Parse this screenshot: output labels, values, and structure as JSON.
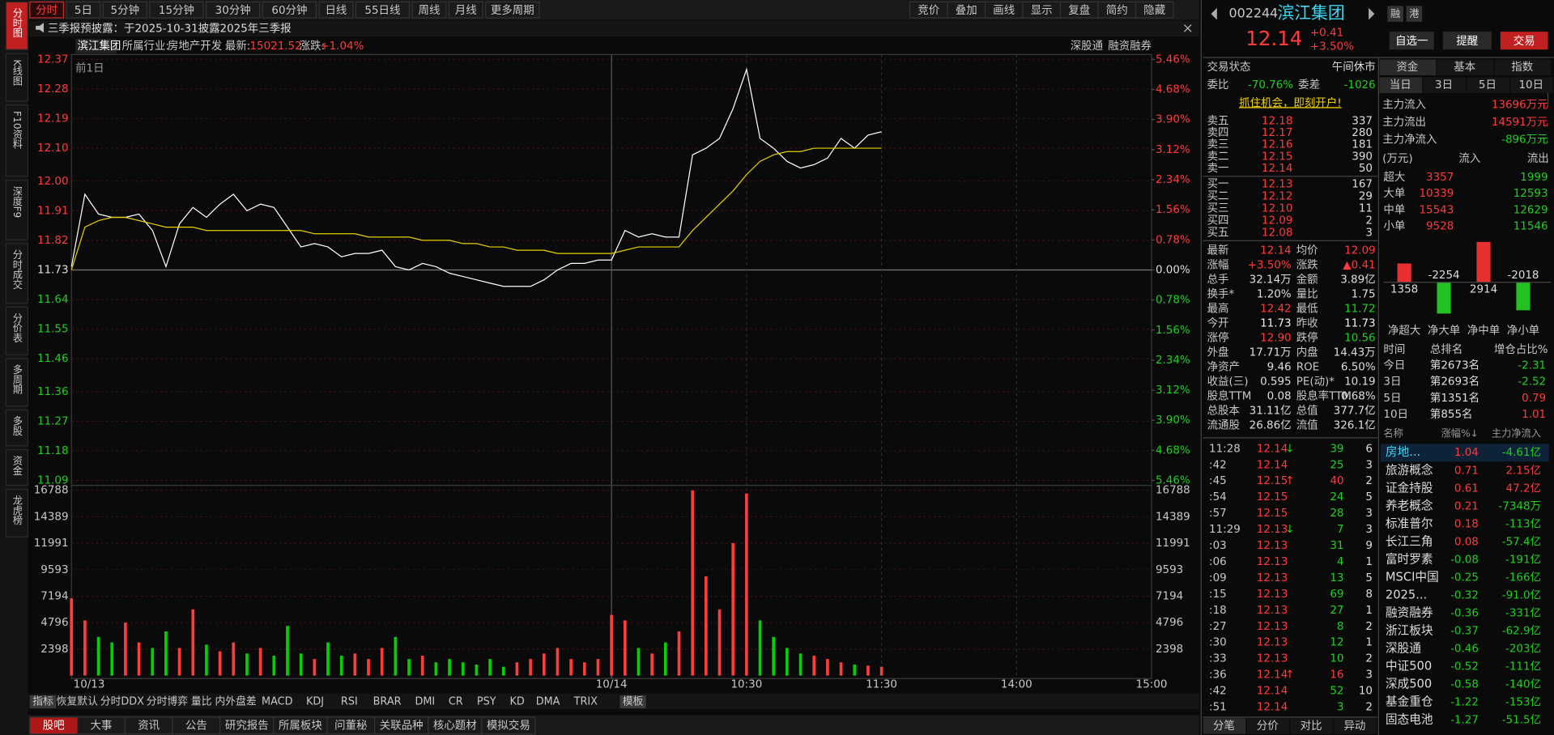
{
  "toolbar": {
    "periods": [
      "分时",
      "5日",
      "5分钟",
      "15分钟",
      "30分钟",
      "60分钟",
      "日线",
      "55日线",
      "周线",
      "月线",
      "更多周期"
    ],
    "tools": [
      "竞价",
      "叠加",
      "画线",
      "显示",
      "复盘",
      "简约",
      "隐藏"
    ]
  },
  "side_tabs": [
    "分时图",
    "K线图",
    "F10资料",
    "深度F9",
    "分时成交",
    "分价表",
    "多周期",
    "多股",
    "资金",
    "龙虎榜"
  ],
  "notice": "三季报预披露：于2025-10-31披露2025年三季报",
  "info": {
    "name": "滨江集团",
    "industry_label": "所属行业:",
    "industry": "房地产开发",
    "latest_label": "最新:",
    "latest": "15021.52",
    "change_label": "涨跌:",
    "change": "+1.04%",
    "links": [
      "深股通",
      "融资融券"
    ]
  },
  "chart_data": [
    {
      "type": "line",
      "annotation": "前1日",
      "x": [
        0,
        6,
        12,
        18,
        24,
        30,
        36,
        42,
        48,
        54,
        60,
        66,
        72,
        78,
        84,
        90,
        96,
        102,
        108,
        114,
        120,
        126,
        132,
        138,
        144,
        150,
        156,
        162,
        168,
        174,
        180,
        186,
        192,
        198,
        204,
        210,
        216,
        222,
        228,
        234,
        240,
        246,
        252,
        258,
        264,
        270,
        276,
        282,
        288,
        294,
        300,
        306,
        312,
        318,
        324,
        330,
        336,
        342,
        348,
        354,
        360
      ],
      "xlim": [
        0,
        480
      ],
      "ylim": [
        11.09,
        12.37
      ],
      "yticks": [
        12.37,
        12.28,
        12.19,
        {
          "value": 12.1,
          "label": "12.10"
        },
        {
          "value": 12,
          "label": "12.00"
        },
        11.91,
        11.82,
        11.73,
        11.64,
        11.55,
        11.46,
        11.36,
        11.27,
        11.18,
        11.09
      ],
      "y2lim": [
        -5.46,
        5.46
      ],
      "y2ticks": [
        {
          "value": 5.46,
          "label": "5.46%"
        },
        {
          "value": 4.68,
          "label": "4.68%"
        },
        {
          "value": 3.9,
          "label": "3.90%"
        },
        {
          "value": 3.12,
          "label": "3.12%"
        },
        {
          "value": 2.34,
          "label": "2.34%"
        },
        {
          "value": 1.56,
          "label": "1.56%"
        },
        {
          "value": 0.78,
          "label": "0.78%"
        },
        {
          "value": 0,
          "label": "0.00%"
        },
        {
          "value": -0.78,
          "label": "0.78%"
        },
        {
          "value": -1.56,
          "label": "1.56%"
        },
        {
          "value": -2.34,
          "label": "2.34%"
        },
        {
          "value": -3.12,
          "label": "3.12%"
        },
        {
          "value": -3.9,
          "label": "3.90%"
        },
        {
          "value": -4.68,
          "label": "4.68%"
        },
        {
          "value": -5.46,
          "label": "5.46%"
        }
      ],
      "grid": true,
      "series": [
        {
          "color": "#ffffff",
          "values": [
            11.74,
            11.96,
            11.9,
            11.89,
            11.89,
            11.9,
            11.85,
            11.74,
            11.87,
            11.92,
            11.89,
            11.93,
            11.96,
            11.91,
            11.93,
            11.92,
            11.86,
            11.8,
            11.81,
            11.8,
            11.77,
            11.78,
            11.78,
            11.79,
            11.74,
            11.73,
            11.75,
            11.74,
            11.72,
            11.71,
            11.7,
            11.69,
            11.68,
            11.68,
            11.68,
            11.7,
            11.73,
            11.75,
            11.75,
            11.76,
            11.76,
            11.85,
            11.83,
            11.84,
            11.83,
            11.83,
            12.08,
            12.1,
            12.13,
            12.22,
            12.34,
            12.13,
            12.1,
            12.06,
            12.04,
            12.05,
            12.07,
            12.13,
            12.1,
            12.14,
            12.15
          ]
        },
        {
          "color": "#e6d200",
          "values": [
            11.73,
            11.86,
            11.88,
            11.89,
            11.89,
            11.88,
            11.87,
            11.86,
            11.86,
            11.86,
            11.85,
            11.85,
            11.85,
            11.85,
            11.85,
            11.85,
            11.85,
            11.85,
            11.84,
            11.84,
            11.84,
            11.84,
            11.83,
            11.83,
            11.83,
            11.83,
            11.82,
            11.82,
            11.82,
            11.81,
            11.81,
            11.8,
            11.8,
            11.79,
            11.79,
            11.79,
            11.78,
            11.78,
            11.78,
            11.78,
            11.78,
            11.79,
            11.8,
            11.8,
            11.8,
            11.8,
            11.85,
            11.89,
            11.93,
            11.97,
            12.02,
            12.06,
            12.08,
            12.09,
            12.09,
            12.1,
            12.1,
            12.1,
            12.1,
            12.1,
            12.1
          ]
        }
      ]
    },
    {
      "type": "bar",
      "x": [
        0,
        6,
        12,
        18,
        24,
        30,
        36,
        42,
        48,
        54,
        60,
        66,
        72,
        78,
        84,
        90,
        96,
        102,
        108,
        114,
        120,
        126,
        132,
        138,
        144,
        150,
        156,
        162,
        168,
        174,
        180,
        186,
        192,
        198,
        204,
        210,
        216,
        222,
        228,
        234,
        240,
        246,
        252,
        258,
        264,
        270,
        276,
        282,
        288,
        294,
        300,
        306,
        312,
        318,
        324,
        330,
        336,
        342,
        348,
        354,
        360
      ],
      "xlim": [
        0,
        480
      ],
      "xticks": [
        {
          "value": 0,
          "label": "10/13"
        },
        {
          "value": 240,
          "label": "10/14"
        },
        {
          "value": 300,
          "label": "10:30"
        },
        {
          "value": 360,
          "label": "11:30"
        },
        {
          "value": 420,
          "label": "14:00"
        },
        {
          "value": 480,
          "label": "15:00"
        }
      ],
      "ylim": [
        0,
        16788
      ],
      "yticks": [
        2398,
        4796,
        7194,
        9593,
        11991,
        14389,
        16788
      ],
      "up_color": "#ff3c3c",
      "down_color": "#00d200",
      "values": [
        7000,
        5000,
        3500,
        3000,
        4800,
        3000,
        2500,
        4000,
        2500,
        6000,
        2800,
        2200,
        3000,
        2000,
        2500,
        1800,
        4500,
        2000,
        1500,
        3000,
        1800,
        2000,
        1500,
        2500,
        3500,
        1500,
        1800,
        1200,
        1500,
        1200,
        1000,
        1500,
        800,
        1200,
        1500,
        2000,
        2500,
        1500,
        1200,
        1500,
        5500,
        5000,
        2500,
        2000,
        3000,
        4000,
        16788,
        9000,
        6000,
        12000,
        16500,
        5000,
        3500,
        2500,
        2000,
        1800,
        1500,
        1200,
        1000,
        900,
        800
      ]
    },
    {
      "type": "bar",
      "categories": [
        "净超大",
        "净大单",
        "净中单",
        "净小单"
      ],
      "values": [
        1358,
        -2254,
        2914,
        -2018
      ],
      "ylim": [
        -3000,
        3000
      ],
      "up_color": "#e83030",
      "down_color": "#22c222"
    }
  ],
  "indicator_tabs": [
    "指标",
    "恢复默认",
    "分时DDX",
    "分时博弈",
    "量比",
    "内外盘差",
    "MACD",
    "KDJ",
    "RSI",
    "BRAR",
    "DMI",
    "CR",
    "PSY",
    "KD",
    "DMA",
    "TRIX",
    "模板"
  ],
  "bottom_tabs": [
    "股吧",
    "大事",
    "资讯",
    "公告",
    "研究报告",
    "所属板块",
    "问董秘",
    "关联品种",
    "核心题材",
    "模拟交易"
  ],
  "quote": {
    "code": "002244",
    "name": "滨江集团",
    "price": "12.14",
    "change": "+0.41",
    "pct": "+3.50%",
    "badges": [
      "融",
      "港"
    ],
    "buttons": [
      "自选一",
      "提醒",
      "交易"
    ],
    "status_label": "交易状态",
    "status": "午间休市",
    "wb_label": "委比",
    "wb": "-70.76%",
    "wc_label": "委差",
    "wc": "-1026",
    "ad": "抓住机会，即刻开户!"
  },
  "order_book": [
    [
      "卖五",
      "12.18",
      "337"
    ],
    [
      "卖四",
      "12.17",
      "280"
    ],
    [
      "卖三",
      "12.16",
      "181"
    ],
    [
      "卖二",
      "12.15",
      "390"
    ],
    [
      "卖一",
      "12.14",
      "50"
    ],
    [
      "买一",
      "12.13",
      "167"
    ],
    [
      "买二",
      "12.12",
      "29"
    ],
    [
      "买三",
      "12.10",
      "11"
    ],
    [
      "买四",
      "12.09",
      "2"
    ],
    [
      "买五",
      "12.08",
      "3"
    ]
  ],
  "prev_close": "11.73",
  "stats": [
    [
      "最新",
      "12.14",
      "均价",
      "12.09"
    ],
    [
      "涨幅",
      "+3.50%",
      "涨跌",
      "▲0.41"
    ],
    [
      "总手",
      "32.14万",
      "金额",
      "3.89亿"
    ],
    [
      "换手*",
      "1.20%",
      "量比",
      "1.75"
    ],
    [
      "最高",
      "12.42",
      "最低",
      "11.72"
    ],
    [
      "今开",
      "11.73",
      "昨收",
      "11.73"
    ],
    [
      "涨停",
      "12.90",
      "跌停",
      "10.56"
    ],
    [
      "外盘",
      "17.71万",
      "内盘",
      "14.43万"
    ],
    [
      "净资产",
      "9.46",
      "ROE",
      "6.50%"
    ],
    [
      "收益(三)",
      "0.595",
      "PE(动)*",
      "10.19"
    ],
    [
      "股息TTM",
      "0.08",
      "股息率TTM",
      "0.68%"
    ],
    [
      "总股本",
      "31.11亿",
      "总值",
      "377.7亿"
    ],
    [
      "流通股",
      "26.86亿",
      "流值",
      "326.1亿"
    ]
  ],
  "ticks": [
    {
      "time": "11:28",
      "price": "12.14",
      "dir": "↓",
      "volume": "39",
      "count": "6"
    },
    {
      "time": ":42",
      "price": "12.14",
      "volume": "25",
      "count": "3"
    },
    {
      "time": ":45",
      "price": "12.15",
      "dir": "↑",
      "volume": "40",
      "count": "2"
    },
    {
      "time": ":54",
      "price": "12.15",
      "volume": "24",
      "count": "5"
    },
    {
      "time": ":57",
      "price": "12.15",
      "volume": "28",
      "count": "3"
    },
    {
      "time": "11:29",
      "price": "12.13",
      "dir": "↓",
      "volume": "7",
      "count": "3"
    },
    {
      "time": ":03",
      "price": "12.13",
      "volume": "31",
      "count": "9"
    },
    {
      "time": ":06",
      "price": "12.13",
      "volume": "4",
      "count": "1"
    },
    {
      "time": ":09",
      "price": "12.13",
      "volume": "13",
      "count": "5"
    },
    {
      "time": ":15",
      "price": "12.13",
      "volume": "69",
      "count": "8"
    },
    {
      "time": ":18",
      "price": "12.13",
      "volume": "27",
      "count": "1"
    },
    {
      "time": ":27",
      "price": "12.13",
      "volume": "8",
      "count": "2"
    },
    {
      "time": ":30",
      "price": "12.13",
      "volume": "12",
      "count": "1"
    },
    {
      "time": ":33",
      "price": "12.13",
      "volume": "10",
      "count": "2"
    },
    {
      "time": ":36",
      "price": "12.14",
      "dir": "↑",
      "volume": "16",
      "count": "3"
    },
    {
      "time": ":42",
      "price": "12.14",
      "volume": "52",
      "count": "10"
    },
    {
      "time": ":51",
      "price": "12.14",
      "volume": "3",
      "count": "2"
    }
  ],
  "tick_tabs": [
    "分笔",
    "分价",
    "对比",
    "异动"
  ],
  "fund": {
    "tabs": [
      "资金",
      "基本",
      "指数"
    ],
    "periods": [
      "当日",
      "3日",
      "5日",
      "10日"
    ],
    "main": [
      [
        "主力流入",
        "13696万元"
      ],
      [
        "主力流出",
        "14591万元"
      ],
      [
        "主力净流入",
        "-896万元"
      ]
    ],
    "header": [
      "(万元)",
      "流入",
      "流出"
    ],
    "rows": [
      [
        "超大",
        "3357",
        "1999"
      ],
      [
        "大单",
        "10339",
        "12593"
      ],
      [
        "中单",
        "15543",
        "12629"
      ],
      [
        "小单",
        "9528",
        "11546"
      ]
    ],
    "rank_header": [
      "时间",
      "总排名",
      "增仓占比%"
    ],
    "ranks": [
      [
        "今日",
        "第2673名",
        "-2.31"
      ],
      [
        "3日",
        "第2693名",
        "-2.52"
      ],
      [
        "5日",
        "第1351名",
        "0.79"
      ],
      [
        "10日",
        "第855名",
        "1.01"
      ]
    ]
  },
  "sectors": {
    "header": [
      "名称",
      "涨幅%↓",
      "主力净流入"
    ],
    "rows": [
      [
        "房地...",
        "1.04",
        "-4.61亿"
      ],
      [
        "旅游概念",
        "0.71",
        "2.15亿"
      ],
      [
        "证金持股",
        "0.61",
        "47.2亿"
      ],
      [
        "养老概念",
        "0.21",
        "-7348万"
      ],
      [
        "标准普尔",
        "0.18",
        "-113亿"
      ],
      [
        "长江三角",
        "0.08",
        "-57.4亿"
      ],
      [
        "富时罗素",
        "-0.08",
        "-191亿"
      ],
      [
        "MSCI中国",
        "-0.25",
        "-166亿"
      ],
      [
        "2025...",
        "-0.32",
        "-91.0亿"
      ],
      [
        "融资融券",
        "-0.36",
        "-331亿"
      ],
      [
        "浙江板块",
        "-0.37",
        "-62.9亿"
      ],
      [
        "深股通",
        "-0.46",
        "-203亿"
      ],
      [
        "中证500",
        "-0.52",
        "-111亿"
      ],
      [
        "深成500",
        "-0.58",
        "-140亿"
      ],
      [
        "基金重仓",
        "-1.22",
        "-153亿"
      ],
      [
        "固态电池",
        "-1.27",
        "-51.5亿"
      ]
    ]
  }
}
